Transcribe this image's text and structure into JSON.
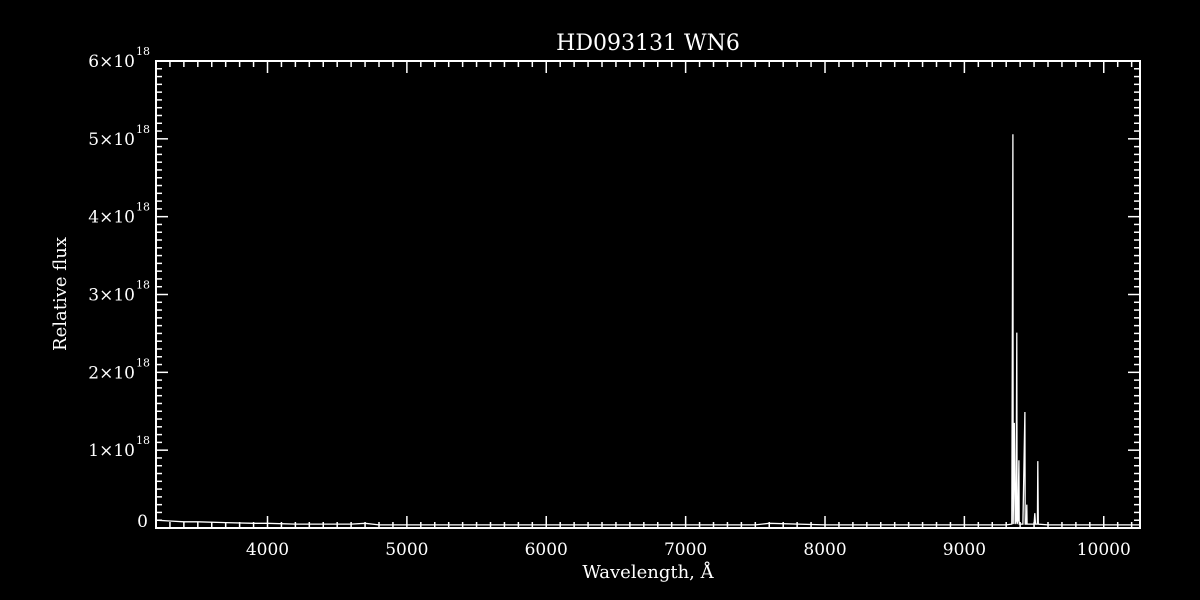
{
  "chart_data": {
    "type": "line",
    "title": "HD093131  WN6",
    "xlabel": "Wavelength, Å",
    "ylabel": "Relative flux",
    "xlim": [
      3200,
      10260
    ],
    "ylim": [
      0,
      6e+18
    ],
    "x_ticks": [
      4000,
      5000,
      6000,
      7000,
      8000,
      9000,
      10000
    ],
    "y_ticks": [
      {
        "value": 0,
        "mantissa": "0",
        "exp": ""
      },
      {
        "value": 1e+18,
        "mantissa": "1×10",
        "exp": "18"
      },
      {
        "value": 2e+18,
        "mantissa": "2×10",
        "exp": "18"
      },
      {
        "value": 3e+18,
        "mantissa": "3×10",
        "exp": "18"
      },
      {
        "value": 4e+18,
        "mantissa": "4×10",
        "exp": "18"
      },
      {
        "value": 5e+18,
        "mantissa": "5×10",
        "exp": "18"
      },
      {
        "value": 6e+18,
        "mantissa": "6×10",
        "exp": "18"
      }
    ],
    "grid": false,
    "colors": {
      "background": "#000000",
      "line": "#ffffff"
    },
    "series": [
      {
        "x": [
          3200,
          3300,
          3400,
          3500,
          3700,
          3900,
          4000,
          4200,
          4400,
          4600,
          4700,
          4800,
          5000,
          5200,
          5500,
          6000,
          6500,
          7000,
          7500,
          7600,
          8000,
          8500,
          9000,
          9300,
          9340,
          9348,
          9350,
          9358,
          9362,
          9364,
          9370,
          9376,
          9378,
          9385,
          9391,
          9393,
          9420,
          9434,
          9436,
          9445,
          9448,
          9450,
          9500,
          9505,
          9510,
          9524,
          9527,
          9530,
          9600,
          9700,
          10000,
          10260
        ],
        "y": [
          1e+17,
          9e+16,
          8e+16,
          8e+16,
          7e+16,
          6e+16,
          6e+16,
          5e+16,
          5e+16,
          5e+16,
          6e+16,
          4e+16,
          4e+16,
          4e+16,
          4e+16,
          4e+16,
          4e+16,
          4e+16,
          4e+16,
          6e+16,
          4e+16,
          4e+16,
          4e+16,
          4e+16,
          5e+16,
          5.06e+18,
          5e+16,
          1.35e+18,
          6.5e+17,
          5e+16,
          1e+17,
          2.51e+18,
          5e+16,
          1e+17,
          8.7e+17,
          5e+16,
          5e+16,
          1.49e+18,
          5e+16,
          5e+16,
          3e+17,
          5e+16,
          5e+16,
          1.9e+17,
          5e+16,
          5e+16,
          8.6e+17,
          5e+16,
          4e+16,
          4e+16,
          4e+16,
          4e+16
        ]
      }
    ]
  }
}
